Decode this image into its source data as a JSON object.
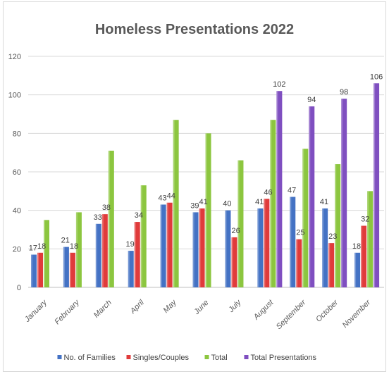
{
  "chart_data": {
    "type": "bar",
    "title": "Homeless Presentations 2022",
    "categories": [
      "January",
      "February",
      "March",
      "April",
      "May",
      "June",
      "July",
      "August",
      "September",
      "October",
      "November"
    ],
    "series": [
      {
        "name": "No. of Families",
        "color": "#4472c4",
        "values": [
          17,
          21,
          33,
          19,
          43,
          39,
          40,
          41,
          47,
          41,
          18
        ],
        "labeled": [
          true,
          true,
          true,
          true,
          true,
          true,
          true,
          true,
          true,
          true,
          true
        ]
      },
      {
        "name": "Singles/Couples",
        "color": "#e03b3b",
        "values": [
          18,
          18,
          38,
          34,
          44,
          41,
          26,
          46,
          25,
          23,
          32
        ],
        "labeled": [
          true,
          true,
          true,
          true,
          true,
          true,
          true,
          true,
          true,
          true,
          true
        ]
      },
      {
        "name": "Total",
        "color": "#8cc63f",
        "values": [
          35,
          39,
          71,
          53,
          87,
          80,
          66,
          87,
          72,
          64,
          50
        ],
        "labeled": [
          false,
          false,
          false,
          false,
          false,
          false,
          false,
          false,
          false,
          false,
          false
        ]
      },
      {
        "name": "Total Presentations",
        "color": "#7f4fc0",
        "values": [
          null,
          null,
          null,
          null,
          null,
          null,
          null,
          102,
          94,
          98,
          106
        ],
        "labeled": [
          false,
          false,
          false,
          false,
          false,
          false,
          false,
          true,
          true,
          true,
          true
        ]
      }
    ],
    "ylim": [
      0,
      120
    ],
    "yticks": [
      0,
      20,
      40,
      60,
      80,
      100,
      120
    ],
    "grid": true,
    "legend_position": "bottom"
  }
}
